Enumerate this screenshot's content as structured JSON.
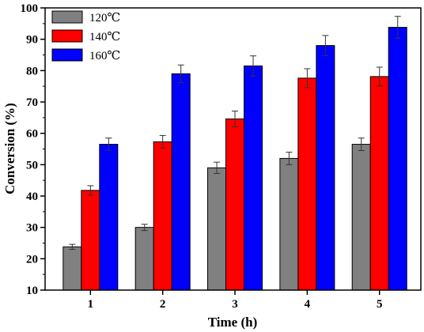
{
  "chart_data": {
    "type": "bar",
    "xlabel": "Time (h)",
    "ylabel": "Conversion (%)",
    "categories": [
      "1",
      "2",
      "3",
      "4",
      "5"
    ],
    "ylim": [
      10,
      100
    ],
    "yticks": [
      "10",
      "20",
      "30",
      "40",
      "50",
      "60",
      "70",
      "80",
      "90",
      "100"
    ],
    "grid": false,
    "legend_position": "top-left",
    "error_bars": true,
    "series": [
      {
        "name": "120℃",
        "color": "#808080",
        "values": [
          23.8,
          30.0,
          49.0,
          52.0,
          56.5
        ],
        "errors": [
          0.8,
          1.0,
          1.8,
          2.0,
          2.0
        ]
      },
      {
        "name": "140℃",
        "color": "#ff0000",
        "values": [
          41.8,
          57.3,
          64.6,
          77.6,
          78.1
        ],
        "errors": [
          1.5,
          2.0,
          2.5,
          3.0,
          3.0
        ]
      },
      {
        "name": "160℃",
        "color": "#0000ff",
        "values": [
          56.5,
          79.0,
          81.5,
          88.0,
          93.8
        ],
        "errors": [
          2.0,
          2.8,
          3.2,
          3.2,
          3.5
        ]
      }
    ]
  }
}
